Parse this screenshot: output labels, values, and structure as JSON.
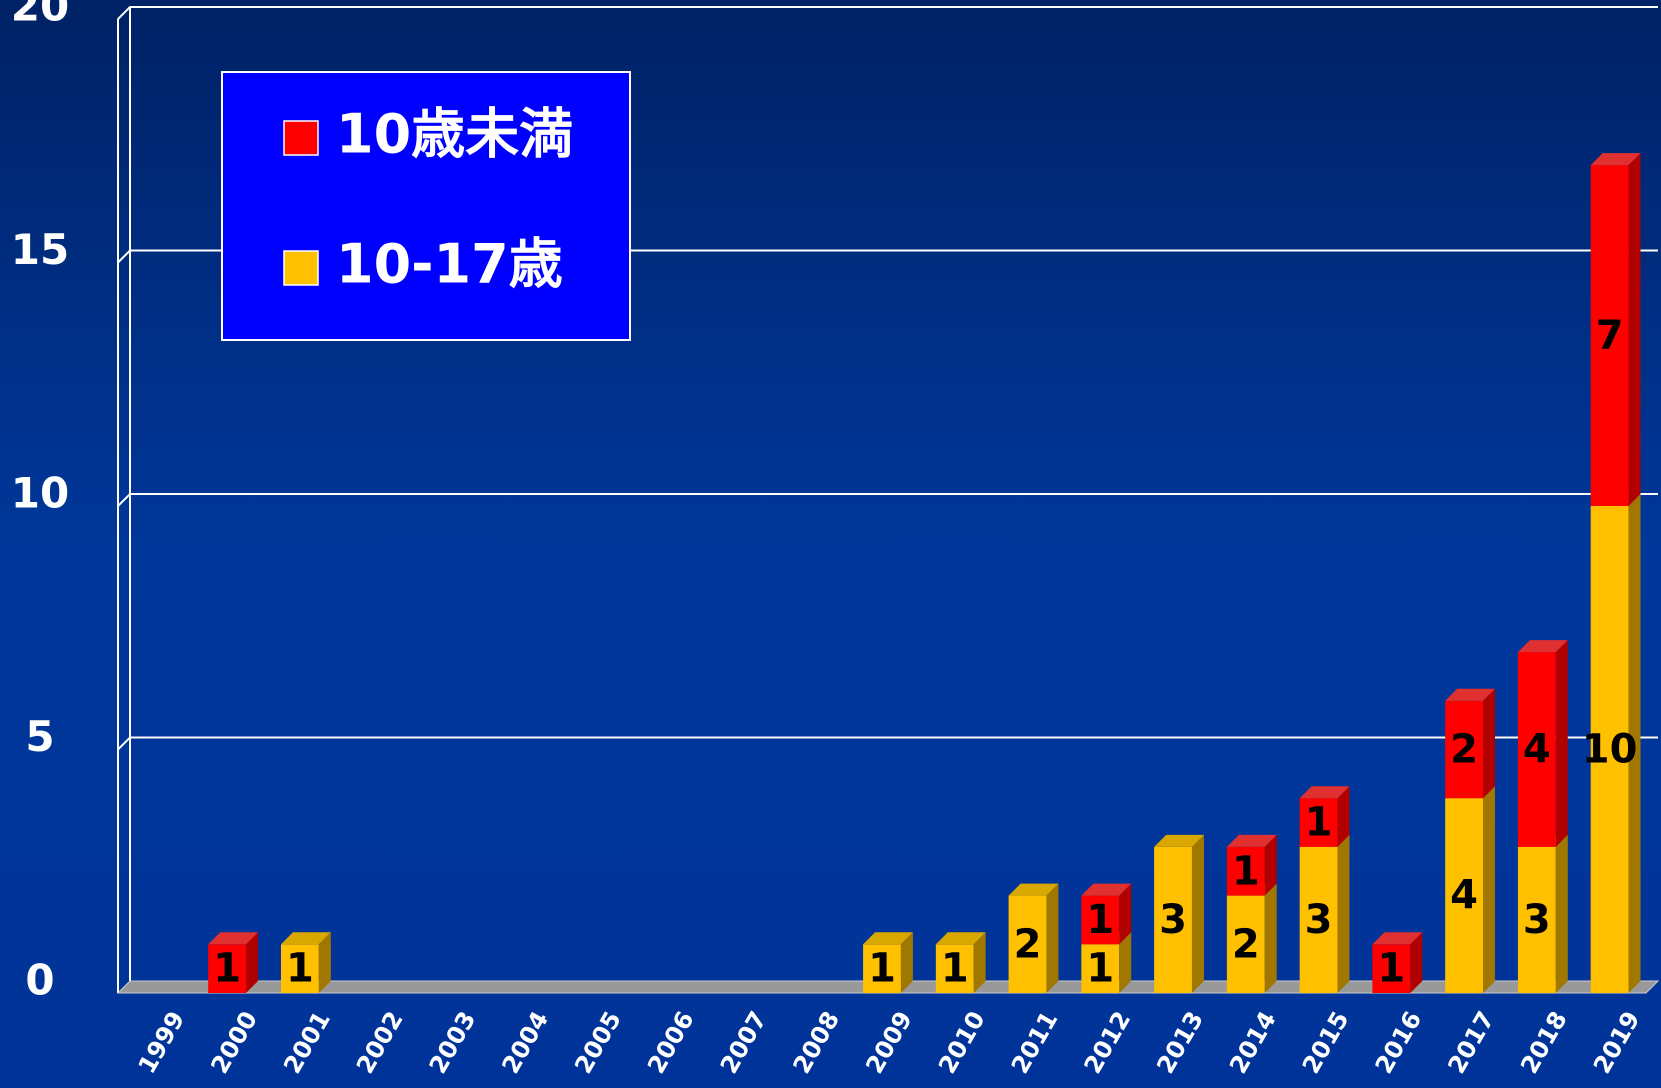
{
  "chart_data": {
    "type": "bar",
    "stacked": true,
    "categories": [
      "1999",
      "2000",
      "2001",
      "2002",
      "2003",
      "2004",
      "2005",
      "2006",
      "2007",
      "2008",
      "2009",
      "2010",
      "2011",
      "2012",
      "2013",
      "2014",
      "2015",
      "2016",
      "2017",
      "2018",
      "2019"
    ],
    "series": [
      {
        "name": "10-17歳",
        "color": "#ffc000",
        "values": [
          0,
          0,
          1,
          0,
          0,
          0,
          0,
          0,
          0,
          0,
          1,
          1,
          2,
          1,
          3,
          2,
          3,
          0,
          4,
          3,
          10
        ]
      },
      {
        "name": "10歳未満",
        "color": "#ff0000",
        "values": [
          0,
          1,
          0,
          0,
          0,
          0,
          0,
          0,
          0,
          0,
          0,
          0,
          0,
          1,
          0,
          1,
          1,
          1,
          2,
          4,
          7
        ]
      }
    ],
    "ylim": [
      0,
      20
    ],
    "yticks": [
      0,
      5,
      10,
      15,
      20
    ],
    "grid": true,
    "legend": "upper left"
  }
}
